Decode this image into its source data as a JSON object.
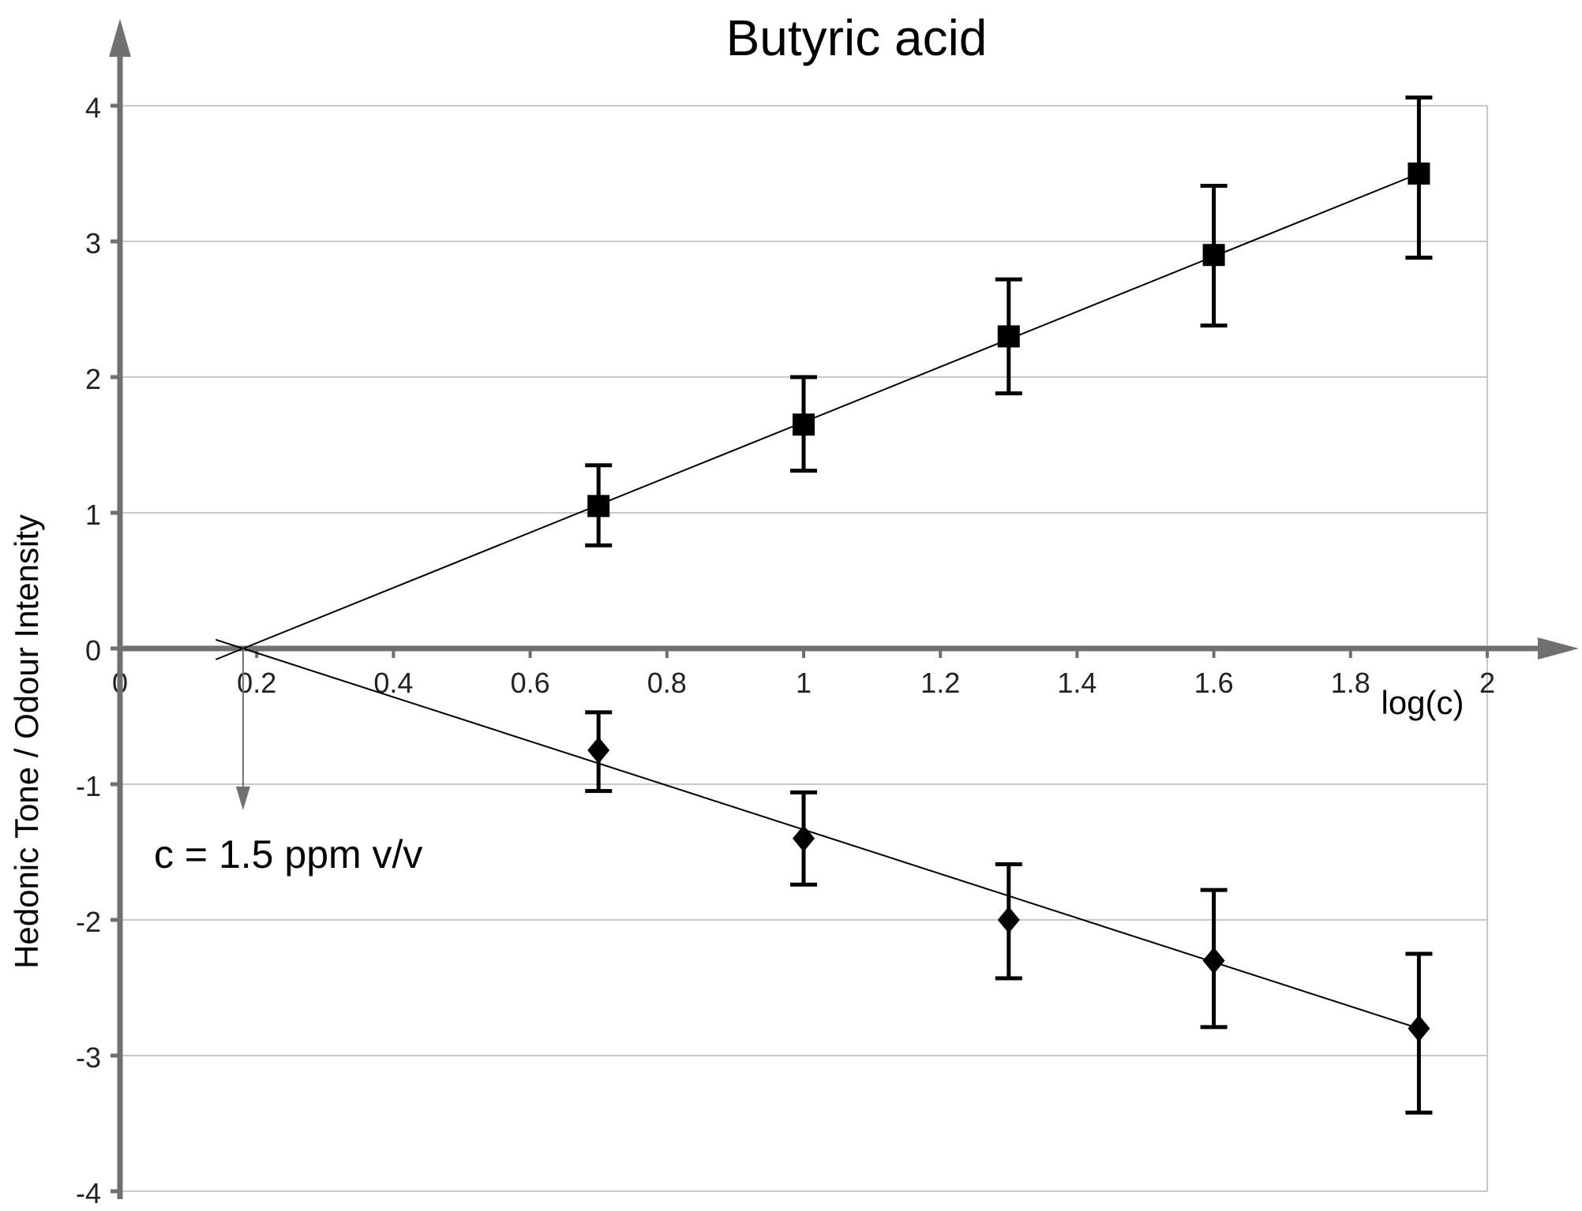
{
  "chart_data": {
    "type": "scatter",
    "title": "Butyric acid",
    "xlabel": "log(c)",
    "ylabel": "Hedonic Tone  /  Odour Intensity",
    "xlim": [
      0,
      2
    ],
    "ylim": [
      -4,
      4
    ],
    "x_ticks": [
      0,
      0.2,
      0.4,
      0.6,
      0.8,
      1,
      1.2,
      1.4,
      1.6,
      1.8,
      2
    ],
    "x_tick_labels": [
      "0",
      "0.2",
      "0.4",
      "0.6",
      "0.8",
      "1",
      "1.2",
      "1.4",
      "1.6",
      "1.8",
      "2"
    ],
    "y_ticks": [
      -4,
      -3,
      -2,
      -1,
      0,
      1,
      2,
      3,
      4
    ],
    "y_tick_labels": [
      "-4",
      "-3",
      "-2",
      "-1",
      "0",
      "1",
      "2",
      "3",
      "4"
    ],
    "grid": "horizontal",
    "annotation": "c = 1.5 ppm v/v",
    "threshold_x": 0.18,
    "series": [
      {
        "marker": "square",
        "x": [
          0.7,
          1.0,
          1.3,
          1.6,
          1.9
        ],
        "y": [
          1.05,
          1.65,
          2.3,
          2.9,
          3.5
        ],
        "err_low": [
          0.76,
          1.31,
          1.88,
          2.38,
          2.88
        ],
        "err_high": [
          1.35,
          2.0,
          2.72,
          3.41,
          4.06
        ],
        "fit": {
          "x": [
            0.18,
            1.9
          ],
          "y": [
            0,
            3.5
          ]
        }
      },
      {
        "marker": "diamond",
        "x": [
          0.7,
          1.0,
          1.3,
          1.6,
          1.9
        ],
        "y": [
          -0.75,
          -1.4,
          -2.0,
          -2.3,
          -2.8
        ],
        "err_low": [
          -1.05,
          -1.74,
          -2.43,
          -2.79,
          -3.42
        ],
        "err_high": [
          -0.47,
          -1.06,
          -1.59,
          -1.78,
          -2.25
        ],
        "fit": {
          "x": [
            0.18,
            1.9
          ],
          "y": [
            0,
            -2.8
          ]
        }
      }
    ]
  }
}
